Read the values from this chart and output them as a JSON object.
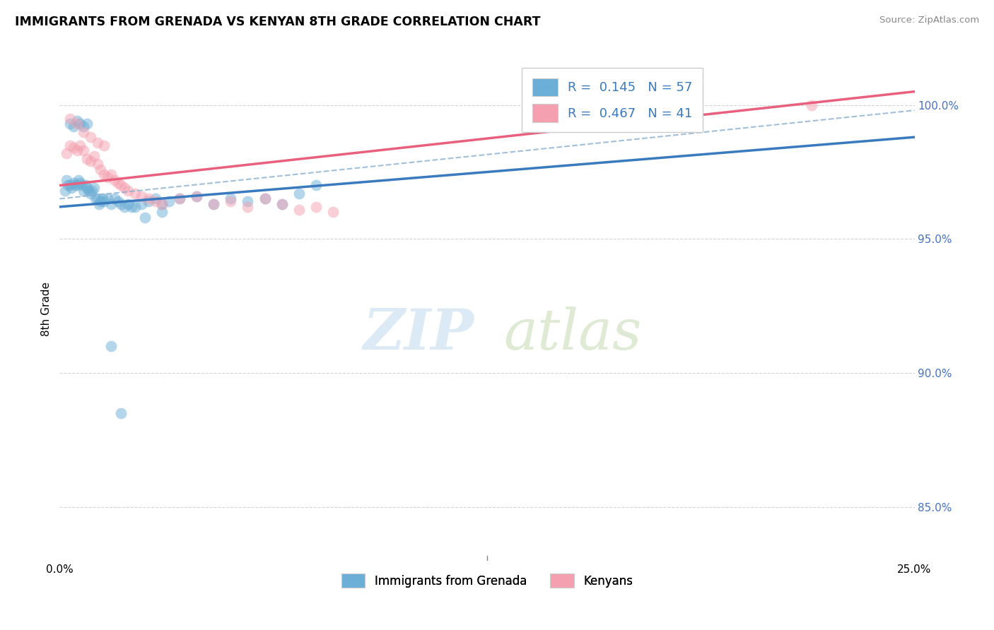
{
  "title": "IMMIGRANTS FROM GRENADA VS KENYAN 8TH GRADE CORRELATION CHART",
  "source_text": "Source: ZipAtlas.com",
  "ylabel": "8th Grade",
  "ylim": [
    83.0,
    101.5
  ],
  "xlim": [
    0.0,
    25.0
  ],
  "ytick_vals": [
    85.0,
    90.0,
    95.0,
    100.0
  ],
  "ytick_labels": [
    "85.0%",
    "90.0%",
    "95.0%",
    "100.0%"
  ],
  "legend1_label": "Immigrants from Grenada",
  "legend2_label": "Kenyans",
  "R1": 0.145,
  "N1": 57,
  "R2": 0.467,
  "N2": 41,
  "blue_color": "#6baed6",
  "pink_color": "#f4a0b0",
  "blue_line_color": "#3a7abf",
  "pink_line_color": "#e8607e",
  "blue_dots_x": [
    0.15,
    0.2,
    0.25,
    0.3,
    0.35,
    0.4,
    0.45,
    0.5,
    0.55,
    0.6,
    0.65,
    0.7,
    0.75,
    0.8,
    0.85,
    0.9,
    0.95,
    1.0,
    1.05,
    1.1,
    1.15,
    1.2,
    1.25,
    1.3,
    1.4,
    1.5,
    1.6,
    1.7,
    1.8,
    1.9,
    2.0,
    2.1,
    2.2,
    2.4,
    2.6,
    2.8,
    3.0,
    3.2,
    3.5,
    4.0,
    4.5,
    5.0,
    5.5,
    6.0,
    6.5,
    7.0,
    7.5,
    0.3,
    0.4,
    0.5,
    0.6,
    0.7,
    0.8,
    1.5,
    1.8,
    2.5,
    3.0
  ],
  "blue_dots_y": [
    96.8,
    97.2,
    97.0,
    97.0,
    96.9,
    97.1,
    97.0,
    97.0,
    97.2,
    97.1,
    97.0,
    96.8,
    97.0,
    96.9,
    96.8,
    96.7,
    96.8,
    96.9,
    96.5,
    96.5,
    96.3,
    96.4,
    96.5,
    96.4,
    96.5,
    96.3,
    96.5,
    96.4,
    96.3,
    96.2,
    96.3,
    96.2,
    96.2,
    96.3,
    96.4,
    96.5,
    96.3,
    96.4,
    96.5,
    96.6,
    96.3,
    96.5,
    96.4,
    96.5,
    96.3,
    96.7,
    97.0,
    99.3,
    99.2,
    99.4,
    99.3,
    99.2,
    99.3,
    91.0,
    88.5,
    95.8,
    96.0
  ],
  "pink_dots_x": [
    0.2,
    0.3,
    0.4,
    0.5,
    0.6,
    0.7,
    0.8,
    0.9,
    1.0,
    1.1,
    1.2,
    1.3,
    1.4,
    1.5,
    1.6,
    1.7,
    1.8,
    1.9,
    2.0,
    2.2,
    2.4,
    2.6,
    2.8,
    3.0,
    3.5,
    4.0,
    4.5,
    5.0,
    5.5,
    6.0,
    6.5,
    7.0,
    7.5,
    8.0,
    0.3,
    0.5,
    0.7,
    0.9,
    1.1,
    1.3,
    22.0
  ],
  "pink_dots_y": [
    98.2,
    98.5,
    98.4,
    98.3,
    98.5,
    98.3,
    98.0,
    97.9,
    98.1,
    97.8,
    97.6,
    97.4,
    97.3,
    97.4,
    97.2,
    97.1,
    97.0,
    96.9,
    96.8,
    96.7,
    96.6,
    96.5,
    96.4,
    96.3,
    96.5,
    96.6,
    96.3,
    96.4,
    96.2,
    96.5,
    96.3,
    96.1,
    96.2,
    96.0,
    99.5,
    99.3,
    99.0,
    98.8,
    98.6,
    98.5,
    100.0
  ]
}
